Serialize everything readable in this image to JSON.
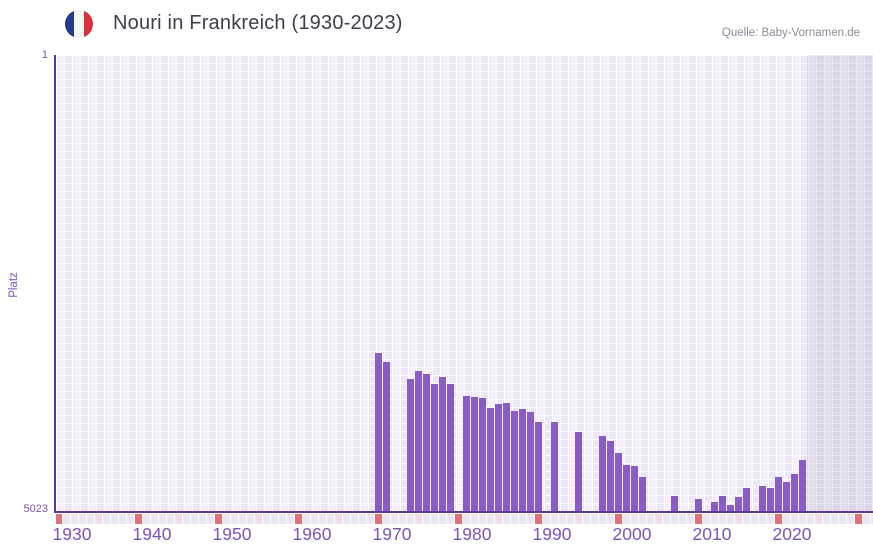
{
  "header": {
    "title": "Nouri in Frankreich (1930-2023)",
    "source": "Quelle: Baby-Vornamen.de"
  },
  "y_axis": {
    "title": "Platz",
    "top_label": "1",
    "bottom_label": "5023"
  },
  "chart_data": {
    "type": "bar",
    "title": "Nouri in Frankreich (1930-2023)",
    "xlabel": "",
    "ylabel": "Platz",
    "x_range": [
      1930,
      2023
    ],
    "y_range": [
      1,
      5023
    ],
    "y_inverted": true,
    "grid": true,
    "x_ticks": [
      1930,
      1940,
      1950,
      1960,
      1970,
      1980,
      1990,
      2000,
      2010,
      2020
    ],
    "series": [
      {
        "name": "Platz",
        "points": [
          {
            "year": 1968,
            "rank": 3287
          },
          {
            "year": 1969,
            "rank": 3386
          },
          {
            "year": 1972,
            "rank": 3573
          },
          {
            "year": 1973,
            "rank": 3485
          },
          {
            "year": 1974,
            "rank": 3511
          },
          {
            "year": 1975,
            "rank": 3621
          },
          {
            "year": 1976,
            "rank": 3548
          },
          {
            "year": 1977,
            "rank": 3621
          },
          {
            "year": 1979,
            "rank": 3757
          },
          {
            "year": 1980,
            "rank": 3771
          },
          {
            "year": 1981,
            "rank": 3774
          },
          {
            "year": 1982,
            "rank": 3884
          },
          {
            "year": 1983,
            "rank": 3840
          },
          {
            "year": 1984,
            "rank": 3829
          },
          {
            "year": 1985,
            "rank": 3921
          },
          {
            "year": 1986,
            "rank": 3895
          },
          {
            "year": 1987,
            "rank": 3932
          },
          {
            "year": 1988,
            "rank": 4042
          },
          {
            "year": 1990,
            "rank": 4042
          },
          {
            "year": 1993,
            "rank": 4152
          },
          {
            "year": 1996,
            "rank": 4196
          },
          {
            "year": 1997,
            "rank": 4251
          },
          {
            "year": 1998,
            "rank": 4379
          },
          {
            "year": 1999,
            "rank": 4515
          },
          {
            "year": 2000,
            "rank": 4532
          },
          {
            "year": 2001,
            "rank": 4653
          },
          {
            "year": 2005,
            "rank": 4862
          },
          {
            "year": 2008,
            "rank": 4892
          },
          {
            "year": 2010,
            "rank": 4925
          },
          {
            "year": 2011,
            "rank": 4859
          },
          {
            "year": 2012,
            "rank": 4953
          },
          {
            "year": 2013,
            "rank": 4870
          },
          {
            "year": 2014,
            "rank": 4771
          },
          {
            "year": 2016,
            "rank": 4746
          },
          {
            "year": 2017,
            "rank": 4774
          },
          {
            "year": 2018,
            "rank": 4650
          },
          {
            "year": 2019,
            "rank": 4708
          },
          {
            "year": 2020,
            "rank": 4620
          },
          {
            "year": 2021,
            "rank": 4463
          }
        ]
      }
    ],
    "colors": {
      "bar": "#8a5cc5",
      "axis_line": "#5b3b97",
      "tick_label": "#7e54b4",
      "plot_bg": "#f3effa",
      "plot_bg_alt": "#ece7f6",
      "recent_band": "#e2deee",
      "strip_decade": "#e0707c",
      "strip_half_decade": "#f4dbe4",
      "strip_default": "#ebe6f3",
      "title_text": "#3f3f4b",
      "source_text": "#8f8c98"
    },
    "legend": "none"
  }
}
